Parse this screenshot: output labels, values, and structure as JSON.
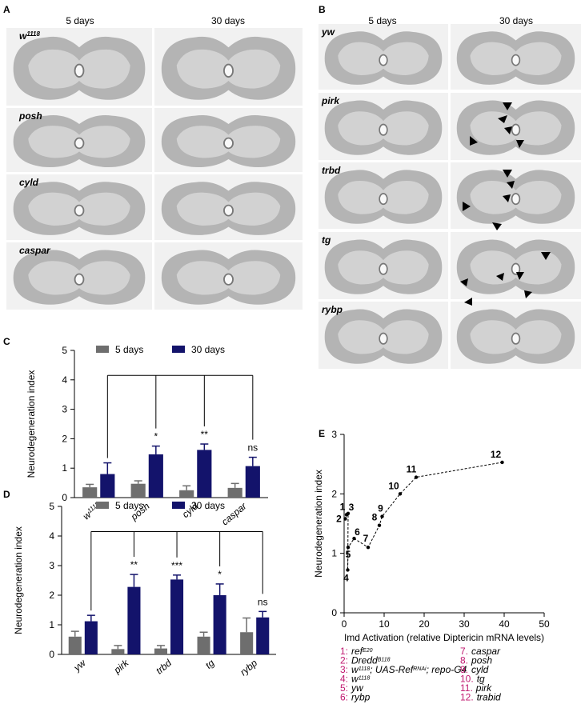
{
  "panels": [
    {
      "label": "A",
      "columns": [
        "5 days",
        "30 days"
      ],
      "rows": [
        [
          "w",
          "1118"
        ],
        [
          "posh"
        ],
        [
          "cyld"
        ],
        [
          "caspar"
        ]
      ]
    },
    {
      "label": "B",
      "columns": [
        "5 days",
        "30 days"
      ],
      "rows": [
        [
          "yw"
        ],
        [
          "pirk"
        ],
        [
          "trbd"
        ],
        [
          "tg"
        ],
        [
          "rybp"
        ]
      ]
    }
  ],
  "chart_data": [
    {
      "label": "C",
      "type": "bar",
      "y_label": "Neurodegeneration index",
      "categories": [
        [
          "w",
          "1118"
        ],
        [
          "posh"
        ],
        [
          "cyld"
        ],
        [
          "caspar"
        ]
      ],
      "series": [
        {
          "name": "5 days",
          "color": "#6e6e6e",
          "values": [
            0.35,
            0.47,
            0.25,
            0.33
          ],
          "errors": [
            0.1,
            0.1,
            0.15,
            0.15
          ]
        },
        {
          "name": "30 days",
          "color": "#13136b",
          "values": [
            0.8,
            1.47,
            1.62,
            1.07
          ],
          "errors": [
            0.38,
            0.28,
            0.2,
            0.3
          ]
        }
      ],
      "significance": [
        null,
        "*",
        "**",
        "ns"
      ],
      "ylim": [
        0,
        5
      ],
      "yticks": [
        0,
        1,
        2,
        3,
        4,
        5
      ]
    },
    {
      "label": "D",
      "type": "bar",
      "y_label": "Neurodegeneration index",
      "categories": [
        [
          "yw"
        ],
        [
          "pirk"
        ],
        [
          "trbd"
        ],
        [
          "tg"
        ],
        [
          "rybp"
        ]
      ],
      "series": [
        {
          "name": "5 days",
          "color": "#6e6e6e",
          "values": [
            0.6,
            0.18,
            0.2,
            0.6,
            0.75
          ],
          "errors": [
            0.18,
            0.12,
            0.1,
            0.15,
            0.48
          ]
        },
        {
          "name": "30 days",
          "color": "#13136b",
          "values": [
            1.12,
            2.28,
            2.53,
            2.0,
            1.25
          ],
          "errors": [
            0.2,
            0.42,
            0.15,
            0.38,
            0.2
          ]
        }
      ],
      "significance": [
        null,
        "**",
        "***",
        "*",
        "ns"
      ],
      "ylim": [
        0,
        5
      ],
      "yticks": [
        0,
        1,
        2,
        3,
        4,
        5
      ]
    },
    {
      "label": "E",
      "type": "scatter",
      "x_label": "Imd Activation (relative Diptericin mRNA levels)",
      "y_label": "Neurodegeneration index",
      "x": [
        0.3,
        0.6,
        1.0,
        0.9,
        1.0,
        2.5,
        6.0,
        8.8,
        9.5,
        14.0,
        18.0,
        39.5
      ],
      "y": [
        1.58,
        1.65,
        1.67,
        0.72,
        1.1,
        1.25,
        1.1,
        1.47,
        1.62,
        2.0,
        2.28,
        2.53
      ],
      "point_labels": [
        "2",
        "1",
        "3",
        "4",
        "5",
        "6",
        "7",
        "8",
        "9",
        "10",
        "11",
        "12"
      ],
      "color": "#000000",
      "label_color": "#c0176f",
      "xlim": [
        0,
        50
      ],
      "xticks": [
        0,
        10,
        20,
        30,
        40,
        50
      ],
      "ylim": [
        0,
        3
      ],
      "yticks": [
        0,
        1,
        2,
        3
      ],
      "legend": [
        {
          "number": "1:",
          "parts": [
            "ref",
            "E20"
          ]
        },
        {
          "number": "2:",
          "parts": [
            "Dredd",
            "B118"
          ]
        },
        {
          "number": "3:",
          "parts": [
            "w",
            "1118",
            "; UAS-Ref",
            "RNAi",
            "; repo-G4"
          ]
        },
        {
          "number": "4:",
          "parts": [
            "w",
            "1118"
          ]
        },
        {
          "number": "5:",
          "parts": [
            "yw"
          ]
        },
        {
          "number": "6:",
          "parts": [
            "rybp"
          ]
        },
        {
          "number": "7.",
          "parts": [
            "caspar"
          ]
        },
        {
          "number": "8.",
          "parts": [
            "posh"
          ]
        },
        {
          "number": "9.",
          "parts": [
            "cyld"
          ]
        },
        {
          "number": "10.",
          "parts": [
            "tg"
          ]
        },
        {
          "number": "11.",
          "parts": [
            "pirk"
          ]
        },
        {
          "number": "12.",
          "parts": [
            "trabid"
          ]
        }
      ]
    }
  ]
}
